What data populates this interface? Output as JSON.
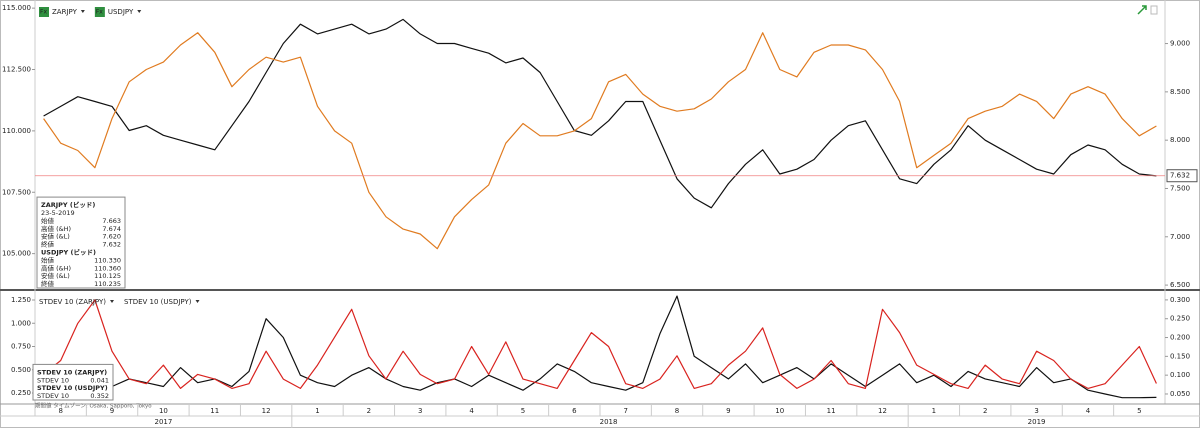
{
  "chart_data": [
    {
      "type": "line",
      "legend_icon": "Fx",
      "series": [
        {
          "name": "ZARJPY",
          "color": "#111111",
          "axis": "y2",
          "values": [
            8.25,
            8.35,
            8.45,
            8.4,
            8.35,
            8.1,
            8.15,
            8.05,
            8.0,
            7.95,
            7.9,
            8.15,
            8.4,
            8.7,
            9.0,
            9.2,
            9.1,
            9.15,
            9.2,
            9.1,
            9.15,
            9.25,
            9.1,
            9.0,
            9.0,
            8.95,
            8.9,
            8.8,
            8.85,
            8.7,
            8.4,
            8.1,
            8.05,
            8.2,
            8.4,
            8.4,
            8.0,
            7.6,
            7.4,
            7.3,
            7.55,
            7.75,
            7.9,
            7.65,
            7.7,
            7.8,
            8.0,
            8.15,
            8.2,
            7.9,
            7.6,
            7.55,
            7.75,
            7.9,
            8.15,
            8.0,
            7.9,
            7.8,
            7.7,
            7.65,
            7.85,
            7.95,
            7.9,
            7.75,
            7.65,
            7.63
          ]
        },
        {
          "name": "USDJPY",
          "color": "#e07b20",
          "values": [
            110.5,
            109.5,
            109.2,
            108.5,
            110.5,
            112.0,
            112.5,
            112.8,
            113.5,
            114.0,
            113.2,
            111.8,
            112.5,
            113.0,
            112.8,
            113.0,
            111.0,
            110.0,
            109.5,
            107.5,
            106.5,
            106.0,
            105.8,
            105.2,
            106.5,
            107.2,
            107.8,
            109.5,
            110.3,
            109.8,
            109.8,
            110.0,
            110.5,
            112.0,
            112.3,
            111.5,
            111.0,
            110.8,
            110.9,
            111.3,
            112.0,
            112.5,
            114.0,
            112.5,
            112.2,
            113.2,
            113.5,
            113.5,
            113.3,
            112.5,
            111.2,
            108.5,
            109.0,
            109.5,
            110.5,
            110.8,
            111.0,
            111.5,
            111.2,
            110.5,
            111.5,
            111.8,
            111.5,
            110.5,
            109.8,
            110.2
          ]
        }
      ],
      "ylim": [
        103.6,
        115.25
      ],
      "yticks": [
        {
          "value": 105,
          "label": "105.000"
        },
        {
          "value": 107.5,
          "label": "107.500"
        },
        {
          "value": 110,
          "label": "110.000"
        },
        {
          "value": 112.5,
          "label": "112.500"
        },
        {
          "value": 115,
          "label": "115.000"
        }
      ],
      "y2lim": [
        6.47,
        9.43
      ],
      "y2ticks": [
        {
          "value": 6.5,
          "label": "6.500"
        },
        {
          "value": 7,
          "label": "7.000"
        },
        {
          "value": 7.5,
          "label": "7.500"
        },
        {
          "value": 8,
          "label": "8.000"
        },
        {
          "value": 8.5,
          "label": "8.500"
        },
        {
          "value": 9,
          "label": "9.000"
        }
      ],
      "last_value": {
        "value": 7.632,
        "label": "7.632"
      },
      "info_box": [
        {
          "title": "ZARJPY (ビッド)",
          "date": "23-5-2019",
          "rows": [
            [
              "始値",
              "7.663"
            ],
            [
              "高値 (&H)",
              "7.674"
            ],
            [
              "安値 (&L)",
              "7.620"
            ],
            [
              "終値",
              "7.632"
            ]
          ]
        },
        {
          "title": "USDJPY (ビッド)",
          "rows": [
            [
              "始値",
              "110.330"
            ],
            [
              "高値 (&H)",
              "110.360"
            ],
            [
              "安値 (&L)",
              "110.125"
            ],
            [
              "終値",
              "110.235"
            ]
          ]
        }
      ]
    },
    {
      "type": "line",
      "series": [
        {
          "name": "STDEV 10 (ZARJPY)",
          "color": "#111111",
          "axis": "y2",
          "values": [
            0.08,
            0.06,
            0.05,
            0.05,
            0.07,
            0.09,
            0.08,
            0.07,
            0.12,
            0.08,
            0.09,
            0.07,
            0.11,
            0.25,
            0.2,
            0.1,
            0.08,
            0.07,
            0.1,
            0.12,
            0.09,
            0.07,
            0.06,
            0.08,
            0.09,
            0.07,
            0.1,
            0.08,
            0.06,
            0.09,
            0.13,
            0.11,
            0.08,
            0.07,
            0.06,
            0.08,
            0.21,
            0.31,
            0.15,
            0.12,
            0.09,
            0.13,
            0.08,
            0.1,
            0.12,
            0.09,
            0.13,
            0.1,
            0.07,
            0.1,
            0.13,
            0.08,
            0.1,
            0.07,
            0.11,
            0.09,
            0.08,
            0.07,
            0.12,
            0.08,
            0.09,
            0.06,
            0.05,
            0.04,
            0.04,
            0.041
          ]
        },
        {
          "name": "STDEV 10 (USDJPY)",
          "color": "#d9231f",
          "values": [
            0.45,
            0.6,
            1.0,
            1.25,
            0.7,
            0.4,
            0.35,
            0.55,
            0.3,
            0.45,
            0.4,
            0.3,
            0.35,
            0.7,
            0.4,
            0.3,
            0.55,
            0.85,
            1.15,
            0.65,
            0.4,
            0.7,
            0.45,
            0.35,
            0.4,
            0.75,
            0.45,
            0.8,
            0.4,
            0.35,
            0.3,
            0.6,
            0.9,
            0.75,
            0.35,
            0.3,
            0.4,
            0.65,
            0.3,
            0.35,
            0.55,
            0.7,
            0.95,
            0.45,
            0.3,
            0.4,
            0.6,
            0.35,
            0.3,
            1.15,
            0.9,
            0.55,
            0.45,
            0.35,
            0.3,
            0.55,
            0.4,
            0.35,
            0.7,
            0.6,
            0.4,
            0.3,
            0.35,
            0.55,
            0.75,
            0.352
          ]
        }
      ],
      "ylim": [
        0.175,
        1.336
      ],
      "yticks": [
        {
          "value": 0.25,
          "label": "0.250"
        },
        {
          "value": 0.5,
          "label": "0.500"
        },
        {
          "value": 0.75,
          "label": "0.750"
        },
        {
          "value": 1,
          "label": "1.000"
        },
        {
          "value": 1.25,
          "label": "1.250"
        }
      ],
      "y2lim": [
        0.034,
        0.321
      ],
      "y2ticks": [
        {
          "value": 0.05,
          "label": "0.050"
        },
        {
          "value": 0.1,
          "label": "0.100"
        },
        {
          "value": 0.15,
          "label": "0.150"
        },
        {
          "value": 0.2,
          "label": "0.200"
        },
        {
          "value": 0.25,
          "label": "0.250"
        },
        {
          "value": 0.3,
          "label": "0.300"
        }
      ],
      "info_box": [
        {
          "title": "STDEV 10 (ZARJPY)",
          "rows": [
            [
              "STDEV 10",
              "0.041"
            ]
          ]
        },
        {
          "title": "STDEV 10 (USDJPY)",
          "rows": [
            [
              "STDEV 10",
              "0.352"
            ]
          ]
        }
      ],
      "footer": "期間値   タイムゾーン: Osaka, Sapporo, Tokyo",
      "categories": [
        null,
        "8",
        null,
        null,
        "9",
        null,
        null,
        "10",
        null,
        null,
        "11",
        null,
        null,
        "12",
        null,
        null,
        "1",
        null,
        null,
        "2",
        null,
        null,
        "3",
        null,
        null,
        "4",
        null,
        null,
        "5",
        null,
        null,
        "6",
        null,
        null,
        "7",
        null,
        null,
        "8",
        null,
        null,
        "9",
        null,
        null,
        "10",
        null,
        null,
        "11",
        null,
        null,
        "12",
        null,
        null,
        "1",
        null,
        null,
        "2",
        null,
        null,
        "3",
        null,
        null,
        "4",
        null,
        null,
        "5",
        null
      ],
      "year_categories": [
        null,
        null,
        null,
        null,
        null,
        null,
        null,
        "2017",
        null,
        null,
        null,
        null,
        null,
        null,
        null,
        null,
        null,
        null,
        null,
        null,
        null,
        null,
        null,
        null,
        null,
        null,
        null,
        null,
        null,
        null,
        null,
        null,
        null,
        "2018",
        null,
        null,
        null,
        null,
        null,
        null,
        null,
        null,
        null,
        null,
        null,
        null,
        null,
        null,
        null,
        null,
        null,
        null,
        null,
        null,
        null,
        null,
        null,
        null,
        "2019",
        null,
        null,
        null,
        null,
        null,
        null,
        null
      ]
    }
  ]
}
